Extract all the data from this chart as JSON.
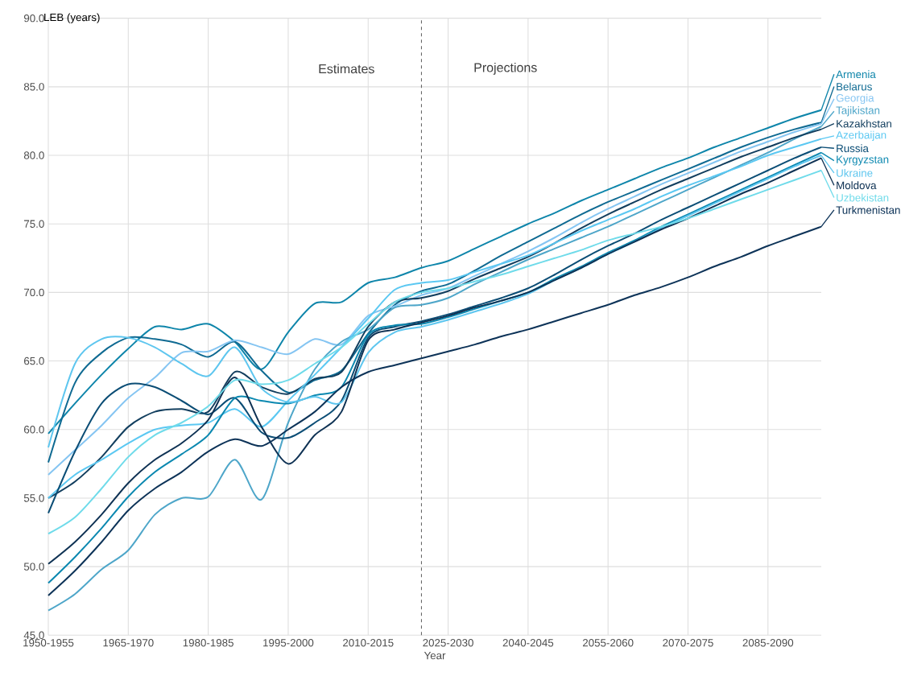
{
  "chart_data": {
    "type": "line",
    "xlabel": "Year",
    "ylabel": "LEB (years)",
    "categories": [
      "1950-1955",
      null,
      null,
      "1965-1970",
      null,
      null,
      "1980-1985",
      null,
      null,
      "1995-2000",
      null,
      null,
      "2010-2015",
      null,
      null,
      "2025-2030",
      null,
      null,
      "2040-2045",
      null,
      null,
      "2055-2060",
      null,
      null,
      "2070-2075",
      null,
      null,
      "2085-2090",
      null,
      null
    ],
    "ylim": [
      45,
      90
    ],
    "yticks": [
      {
        "value": 45,
        "label": "45.0"
      },
      {
        "value": 50,
        "label": "50.0"
      },
      {
        "value": 55,
        "label": "55.0"
      },
      {
        "value": 60,
        "label": "60.0"
      },
      {
        "value": 65,
        "label": "65.0"
      },
      {
        "value": 70,
        "label": "70.0"
      },
      {
        "value": 75,
        "label": "75.0"
      },
      {
        "value": 80,
        "label": "80.0"
      },
      {
        "value": 85,
        "label": "85.0"
      },
      {
        "value": 90,
        "label": "90.0"
      }
    ],
    "grid": true,
    "marker": "none",
    "line_style": "solid",
    "legend": "right",
    "annotations": [
      "Estimates",
      "Projections"
    ],
    "series": [
      {
        "name": "Armenia",
        "color": "#0e85aa",
        "values": [
          59.7,
          61.9,
          64.0,
          65.9,
          67.5,
          67.3,
          67.7,
          66.4,
          64.4,
          67.1,
          69.2,
          69.3,
          70.7,
          71.1,
          71.8,
          72.3,
          73.2,
          74.1,
          75.0,
          75.8,
          76.7,
          77.5,
          78.3,
          79.1,
          79.8,
          80.6,
          81.3,
          82.0,
          82.7,
          83.3
        ]
      },
      {
        "name": "Belarus",
        "color": "#0f6a92",
        "values": [
          57.6,
          63.4,
          65.6,
          66.7,
          66.6,
          66.2,
          65.3,
          66.4,
          64.3,
          62.7,
          63.6,
          64.3,
          67.0,
          69.1,
          70.1,
          70.6,
          71.6,
          72.7,
          73.7,
          74.7,
          75.7,
          76.6,
          77.4,
          78.2,
          79.0,
          79.8,
          80.6,
          81.3,
          81.9,
          82.4
        ]
      },
      {
        "name": "Georgia",
        "color": "#85c5f2",
        "values": [
          56.7,
          58.5,
          60.3,
          62.3,
          63.8,
          65.6,
          65.7,
          66.5,
          66.0,
          65.5,
          66.6,
          66.2,
          68.3,
          69.0,
          69.8,
          70.3,
          71.2,
          72.1,
          73.0,
          74.0,
          75.1,
          76.1,
          77.0,
          77.9,
          78.7,
          79.5,
          80.3,
          81.0,
          81.7,
          82.3
        ]
      },
      {
        "name": "Tajikistan",
        "color": "#4ea6c9",
        "values": [
          46.8,
          48.0,
          49.8,
          51.2,
          53.8,
          55.0,
          55.1,
          57.8,
          54.9,
          60.5,
          64.4,
          66.4,
          67.3,
          68.9,
          69.1,
          69.6,
          70.6,
          71.5,
          72.4,
          73.2,
          74.0,
          74.8,
          75.7,
          76.6,
          77.5,
          78.4,
          79.3,
          80.2,
          81.2,
          82.1
        ]
      },
      {
        "name": "Kazakhstan",
        "color": "#123e5e",
        "values": [
          55.0,
          56.2,
          58.0,
          60.2,
          61.3,
          61.5,
          61.3,
          64.2,
          63.1,
          62.6,
          63.7,
          64.2,
          67.5,
          69.3,
          69.6,
          70.1,
          71.0,
          71.8,
          72.6,
          73.6,
          74.7,
          75.7,
          76.6,
          77.5,
          78.3,
          79.1,
          79.9,
          80.6,
          81.3,
          81.9
        ]
      },
      {
        "name": "Azerbaijan",
        "color": "#5bc8f2",
        "values": [
          55.0,
          56.7,
          57.8,
          59.0,
          60.0,
          60.3,
          60.5,
          61.5,
          60.2,
          62.1,
          64.0,
          66.0,
          68.1,
          70.2,
          70.7,
          70.9,
          71.5,
          72.1,
          72.7,
          73.6,
          74.5,
          75.3,
          76.1,
          77.0,
          77.8,
          78.5,
          79.2,
          80.0,
          80.6,
          81.2
        ]
      },
      {
        "name": "Russia",
        "color": "#0b4d75",
        "values": [
          53.9,
          58.4,
          61.9,
          63.3,
          63.1,
          62.1,
          61.1,
          62.3,
          59.8,
          59.4,
          60.5,
          62.1,
          66.7,
          67.5,
          67.9,
          68.4,
          69.0,
          69.6,
          70.3,
          71.3,
          72.4,
          73.4,
          74.3,
          75.3,
          76.2,
          77.1,
          78.0,
          78.9,
          79.8,
          80.6
        ]
      },
      {
        "name": "Kyrgyzstan",
        "color": "#0b88b0",
        "values": [
          48.8,
          50.7,
          52.8,
          55.1,
          56.9,
          58.2,
          59.6,
          62.3,
          62.1,
          61.9,
          62.5,
          63.1,
          66.9,
          67.6,
          67.7,
          68.2,
          68.8,
          69.4,
          70.0,
          71.0,
          71.9,
          72.9,
          73.8,
          74.8,
          75.7,
          76.6,
          77.5,
          78.4,
          79.3,
          80.2
        ]
      },
      {
        "name": "Ukraine",
        "color": "#5ec6ef",
        "values": [
          58.7,
          64.8,
          66.6,
          66.7,
          66.0,
          64.8,
          63.9,
          66.0,
          63.0,
          62.0,
          62.4,
          62.0,
          65.6,
          67.1,
          67.5,
          68.0,
          68.6,
          69.2,
          69.9,
          70.9,
          71.8,
          72.8,
          73.7,
          74.7,
          75.6,
          76.5,
          77.4,
          78.3,
          79.2,
          80.0
        ]
      },
      {
        "name": "Moldova",
        "color": "#0f3254",
        "values": [
          50.2,
          51.8,
          53.8,
          56.1,
          57.8,
          59.0,
          60.7,
          63.8,
          60.2,
          57.5,
          59.6,
          61.3,
          66.5,
          67.3,
          67.8,
          68.3,
          68.9,
          69.4,
          70.0,
          70.9,
          71.8,
          72.8,
          73.7,
          74.6,
          75.4,
          76.3,
          77.2,
          78.0,
          78.9,
          79.8
        ]
      },
      {
        "name": "Uzbekistan",
        "color": "#6fdbea",
        "values": [
          52.4,
          53.6,
          55.7,
          58.0,
          59.6,
          60.5,
          61.7,
          63.6,
          63.3,
          63.6,
          64.8,
          66.0,
          67.7,
          69.3,
          70.0,
          70.3,
          70.8,
          71.3,
          71.9,
          72.5,
          73.1,
          73.8,
          74.3,
          74.8,
          75.4,
          76.1,
          76.8,
          77.5,
          78.2,
          78.9
        ]
      },
      {
        "name": "Turkmenistan",
        "color": "#0d3358",
        "values": [
          47.9,
          49.7,
          51.8,
          54.1,
          55.7,
          56.9,
          58.4,
          59.3,
          58.8,
          60.0,
          61.3,
          63.1,
          64.2,
          64.7,
          65.2,
          65.7,
          66.2,
          66.8,
          67.3,
          67.9,
          68.5,
          69.1,
          69.8,
          70.4,
          71.1,
          71.9,
          72.6,
          73.4,
          74.1,
          74.8
        ]
      }
    ]
  }
}
